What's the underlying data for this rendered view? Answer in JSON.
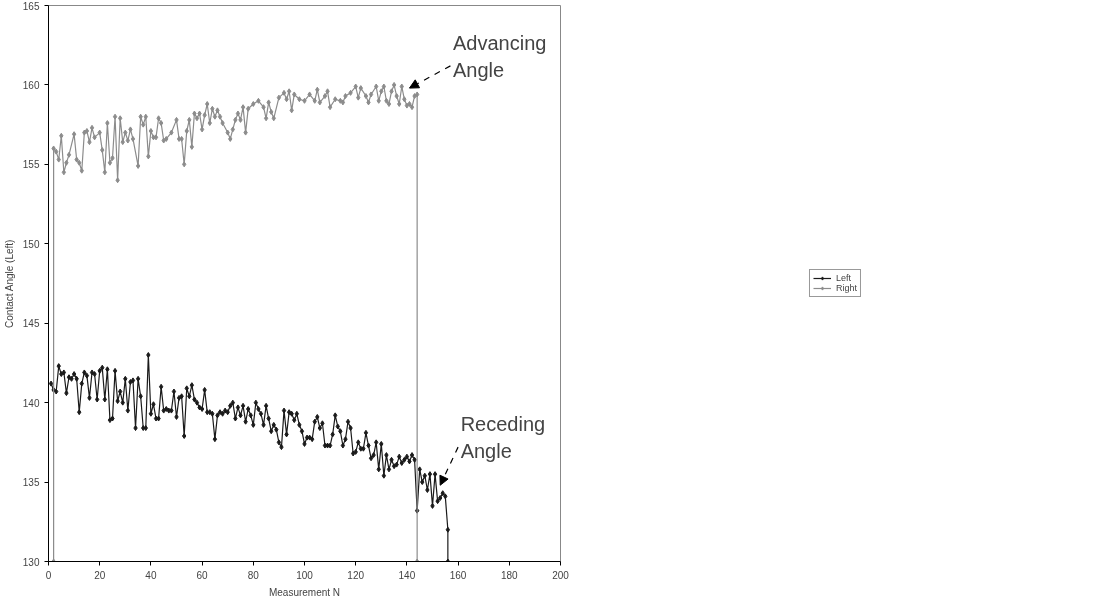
{
  "chart_data": {
    "type": "line",
    "xlabel": "Measurement N",
    "ylabel": "Contact Angle (Left)",
    "xlim": [
      0,
      200
    ],
    "ylim": [
      130,
      165
    ],
    "xticks": [
      0,
      20,
      40,
      60,
      80,
      100,
      120,
      140,
      160,
      180,
      200
    ],
    "yticks": [
      130,
      135,
      140,
      145,
      150,
      155,
      160,
      165
    ],
    "grid": false,
    "legend": "right",
    "marker": "diamond",
    "line_style": "solid",
    "series": [
      {
        "name": "Left",
        "color": "#1a1a1a",
        "x": [
          1,
          2,
          3,
          4,
          5,
          6,
          7,
          8,
          9,
          10,
          11,
          12,
          13,
          14,
          15,
          16,
          17,
          18,
          19,
          20,
          21,
          22,
          23,
          24,
          25,
          26,
          27,
          28,
          29,
          30,
          31,
          32,
          33,
          34,
          35,
          36,
          37,
          38,
          39,
          40,
          41,
          42,
          43,
          44,
          45,
          46,
          47,
          48,
          49,
          50,
          51,
          52,
          53,
          54,
          55,
          56,
          57,
          58,
          59,
          60,
          61,
          62,
          63,
          64,
          65,
          66,
          67,
          68,
          69,
          70,
          71,
          72,
          73,
          74,
          75,
          76,
          77,
          78,
          79,
          80,
          81,
          82,
          83,
          84,
          85,
          86,
          87,
          88,
          89,
          90,
          91,
          92,
          93,
          94,
          95,
          96,
          97,
          98,
          99,
          100,
          101,
          102,
          103,
          104,
          105,
          106,
          107,
          108,
          109,
          110,
          111,
          112,
          113,
          114,
          115,
          116,
          117,
          118,
          119,
          120,
          121,
          122,
          123,
          124,
          125,
          126,
          127,
          128,
          129,
          130,
          131,
          132,
          133,
          134,
          135,
          136,
          137,
          138,
          139,
          140,
          141,
          142,
          143,
          144,
          145,
          146,
          147,
          148,
          149,
          150,
          151,
          152,
          153,
          154,
          155,
          156,
          156
        ],
        "values": [
          141.2,
          140.8,
          140.7,
          142.3,
          141.8,
          141.9,
          140.6,
          141.6,
          141.5,
          141.8,
          141.5,
          139.4,
          141.2,
          141.9,
          141.7,
          140.3,
          141.9,
          141.8,
          140.2,
          142.0,
          142.2,
          140.2,
          142.1,
          138.9,
          139.0,
          142.0,
          140.1,
          140.7,
          140.0,
          141.5,
          139.5,
          141.3,
          141.4,
          138.4,
          141.5,
          140.4,
          138.4,
          138.4,
          143.0,
          139.3,
          139.9,
          139.0,
          139.0,
          141.0,
          139.5,
          139.6,
          139.5,
          139.5,
          140.7,
          139.1,
          140.3,
          140.4,
          137.9,
          140.9,
          140.4,
          141.1,
          140.2,
          140.0,
          139.7,
          139.6,
          140.8,
          139.4,
          139.4,
          139.3,
          137.7,
          139.2,
          139.4,
          139.3,
          139.5,
          139.4,
          139.8,
          140.0,
          139.0,
          139.7,
          139.2,
          139.8,
          138.8,
          139.6,
          139.2,
          138.6,
          140.0,
          139.6,
          139.3,
          138.6,
          139.8,
          139.0,
          138.2,
          138.6,
          138.3,
          137.5,
          137.2,
          139.5,
          138.0,
          139.4,
          139.3,
          138.9,
          139.3,
          138.6,
          138.2,
          137.4,
          137.8,
          137.8,
          137.7,
          138.8,
          139.1,
          138.4,
          138.7,
          137.3,
          137.3,
          137.3,
          138.0,
          139.2,
          138.5,
          138.2,
          137.3,
          137.7,
          138.8,
          138.4,
          136.8,
          136.9,
          137.5,
          137.1,
          137.1,
          138.1,
          137.3,
          136.5,
          136.7,
          137.5,
          135.8,
          137.4,
          135.4,
          136.7,
          135.8,
          136.4,
          136.0,
          136.1,
          136.6,
          136.2,
          136.4,
          136.6,
          136.3,
          136.7,
          136.4,
          133.2,
          135.8,
          135.0,
          135.4,
          134.5,
          135.5,
          133.5,
          135.5,
          133.8,
          134.0,
          134.3,
          134.1,
          132.0,
          130.0
        ]
      },
      {
        "name": "Right",
        "color": "#8c8c8c",
        "x": [
          2,
          2,
          3,
          4,
          5,
          6,
          7,
          8,
          10,
          11,
          12,
          13,
          14,
          15,
          16,
          17,
          18,
          20,
          21,
          22,
          23,
          24,
          25,
          26,
          27,
          28,
          29,
          30,
          31,
          32,
          33,
          35,
          36,
          37,
          38,
          39,
          40,
          41,
          42,
          43,
          44,
          45,
          46,
          48,
          50,
          51,
          52,
          53,
          54,
          55,
          56,
          57,
          58,
          59,
          60,
          61,
          62,
          63,
          64,
          65,
          66,
          67,
          68,
          70,
          71,
          72,
          73,
          74,
          75,
          76,
          77,
          78,
          80,
          82,
          84,
          85,
          86,
          87,
          88,
          90,
          92,
          93,
          94,
          95,
          96,
          98,
          100,
          102,
          104,
          105,
          106,
          108,
          109,
          110,
          112,
          114,
          115,
          116,
          118,
          120,
          121,
          122,
          124,
          125,
          126,
          128,
          129,
          130,
          131,
          132,
          133,
          134,
          135,
          136,
          137,
          138,
          139,
          140,
          141,
          142,
          143,
          144,
          144
        ],
        "values": [
          130.0,
          156.0,
          155.8,
          155.3,
          156.8,
          154.5,
          155.1,
          155.6,
          156.9,
          155.3,
          155.1,
          154.6,
          157.0,
          157.1,
          156.4,
          157.3,
          156.7,
          157.0,
          155.9,
          154.5,
          157.6,
          155.1,
          155.4,
          158.0,
          154.0,
          157.9,
          156.4,
          157.0,
          156.5,
          157.2,
          156.6,
          154.9,
          158.0,
          157.5,
          158.0,
          155.5,
          157.1,
          156.7,
          156.7,
          157.9,
          157.6,
          156.5,
          156.6,
          157.0,
          157.8,
          156.6,
          156.6,
          155.0,
          157.1,
          157.8,
          156.1,
          158.2,
          157.9,
          158.2,
          157.2,
          158.1,
          158.8,
          157.6,
          158.5,
          158.0,
          158.4,
          158.0,
          157.6,
          157.0,
          156.6,
          157.2,
          157.8,
          158.2,
          157.8,
          158.6,
          157.0,
          158.5,
          158.8,
          159.0,
          158.6,
          157.9,
          158.9,
          158.3,
          157.9,
          159.2,
          159.5,
          159.1,
          159.6,
          158.4,
          159.4,
          159.1,
          159.0,
          159.4,
          159.0,
          159.7,
          158.9,
          159.3,
          159.6,
          158.6,
          159.1,
          159.0,
          158.9,
          159.3,
          159.5,
          159.9,
          159.2,
          159.8,
          159.3,
          158.9,
          159.4,
          159.9,
          159.0,
          159.6,
          159.9,
          159.0,
          158.8,
          159.6,
          160.0,
          159.3,
          158.8,
          159.9,
          159.1,
          158.7,
          158.8,
          158.6,
          159.3,
          159.4,
          130.0
        ]
      }
    ],
    "annotations": [
      {
        "text": "Advancing Angle",
        "x": 140,
        "y": 159.6
      },
      {
        "text": "Receding Angle",
        "x": 152,
        "y": 134.6
      }
    ]
  }
}
